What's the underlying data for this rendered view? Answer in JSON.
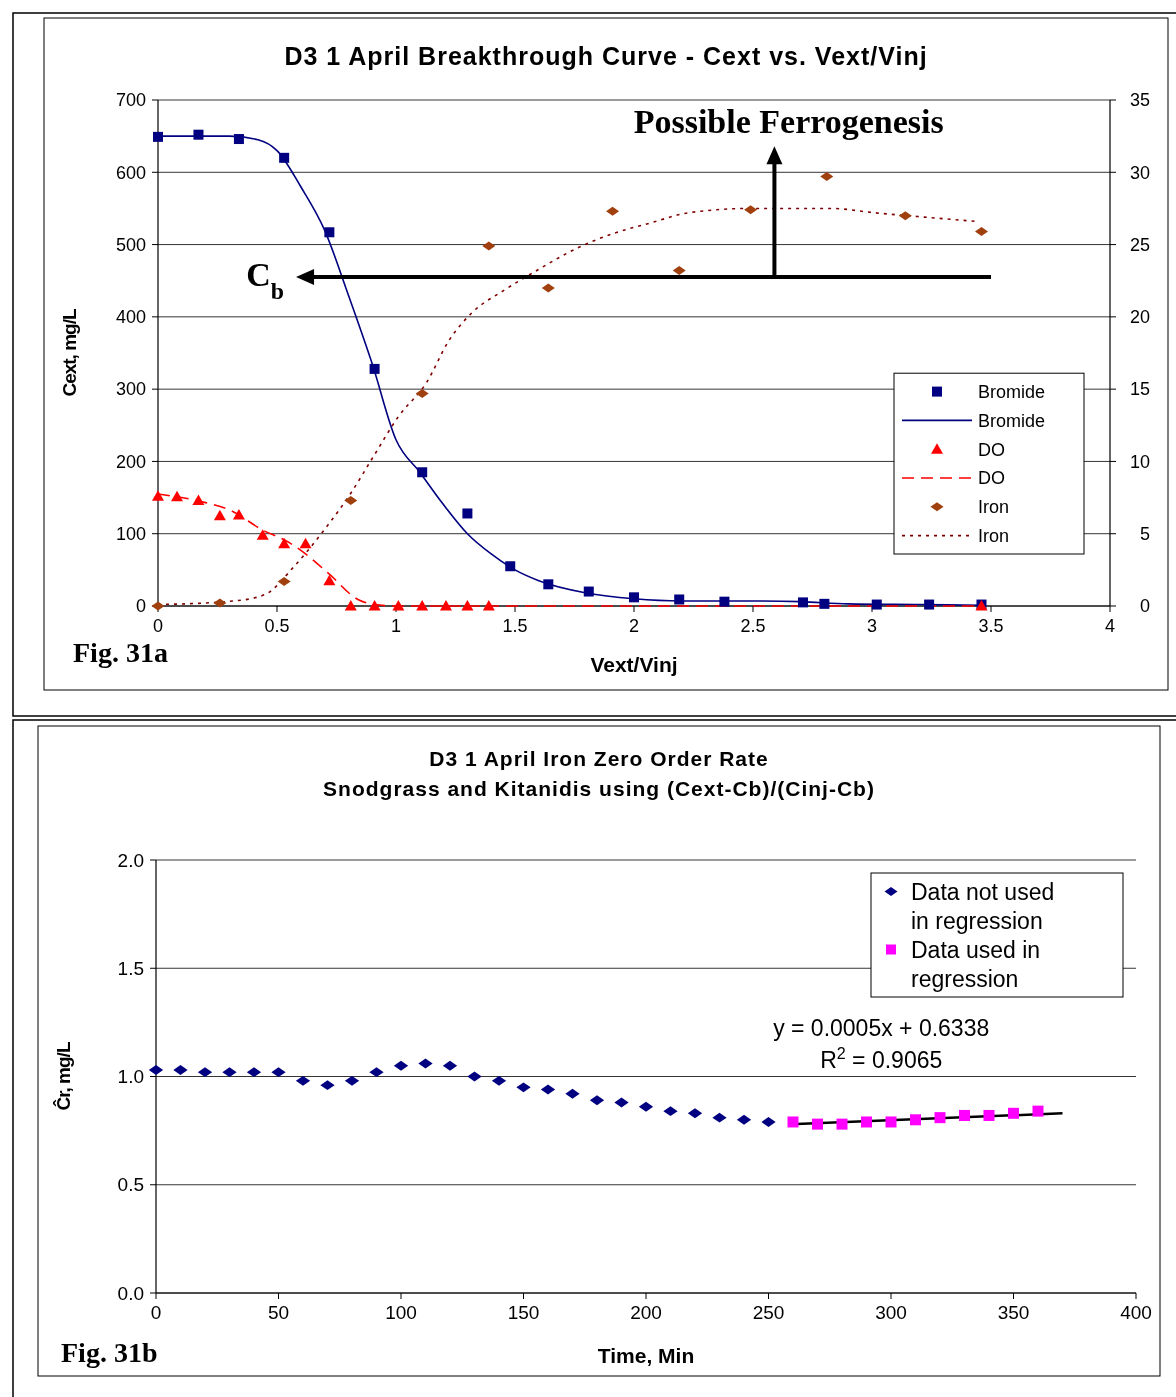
{
  "chart_data": [
    {
      "type": "scatter",
      "title": "D3 1 April Breakthrough Curve - Cext vs. Vext/Vinj",
      "xlabel": "Vext/Vinj",
      "ylabel": "Cext, mg/L",
      "annotations": [
        "Possible Ferrogenesis",
        "C$_{b}$",
        "Fig. 31a"
      ],
      "xlim": [
        0,
        4
      ],
      "xticks": [
        0,
        0.5,
        1,
        1.5,
        2,
        2.5,
        3,
        3.5,
        4
      ],
      "ylim": [
        0,
        700
      ],
      "yticks": [
        0,
        100,
        200,
        300,
        400,
        500,
        600,
        700
      ],
      "y2lim": [
        0,
        35
      ],
      "y2ticks": [
        0,
        5,
        10,
        15,
        20,
        25,
        30,
        35
      ],
      "grid": "y",
      "legend": "bottom right",
      "series": [
        {
          "name": "Bromide",
          "marker": "square",
          "color": "#000080",
          "x": [
            0,
            0.17,
            0.34,
            0.53,
            0.72,
            0.91,
            1.11,
            1.3,
            1.48,
            1.64,
            1.81,
            2.0,
            2.19,
            2.38,
            2.71,
            2.8,
            3.02,
            3.24,
            3.46
          ],
          "values": [
            649,
            652,
            646,
            620,
            517,
            328,
            185,
            128,
            55,
            30,
            20,
            12,
            9,
            6,
            5,
            3,
            2,
            2,
            2
          ]
        },
        {
          "name": "Bromide",
          "type": "line",
          "line_style": "solid",
          "color": "#000080",
          "x": [
            0,
            0.3,
            0.42,
            0.5,
            0.6,
            0.7,
            0.8,
            0.9,
            1.0,
            1.1,
            1.2,
            1.3,
            1.4,
            1.5,
            1.6,
            1.8,
            2.0,
            2.2,
            2.5,
            2.7,
            2.9,
            3.2,
            3.46
          ],
          "values": [
            650,
            650,
            645,
            630,
            580,
            520,
            430,
            335,
            230,
            185,
            140,
            100,
            72,
            50,
            35,
            18,
            10,
            7,
            7,
            6,
            3,
            2,
            1
          ]
        },
        {
          "name": "DO",
          "marker": "triangle",
          "color": "#ff0000",
          "x": [
            0,
            0.08,
            0.17,
            0.26,
            0.34,
            0.44,
            0.53,
            0.62,
            0.72,
            0.81,
            0.91,
            1.01,
            1.11,
            1.21,
            1.3,
            1.39,
            3.46
          ],
          "values": [
            152,
            151,
            146,
            125,
            126,
            98,
            86,
            86,
            35,
            0,
            0,
            0,
            0,
            0,
            0,
            0,
            0
          ]
        },
        {
          "name": "DO",
          "type": "line",
          "line_style": "dashed",
          "color": "#ff0000",
          "x": [
            0,
            0.2,
            0.3,
            0.44,
            0.55,
            0.62,
            0.72,
            0.84,
            0.91,
            1.0,
            3.46
          ],
          "values": [
            155,
            143,
            133,
            105,
            88,
            72,
            44,
            9,
            2,
            0,
            0
          ]
        },
        {
          "name": "Iron",
          "marker": "diamond",
          "axis": "y2",
          "color": "#a0400f",
          "x": [
            0,
            0.26,
            0.53,
            0.81,
            1.11,
            1.39,
            1.64,
            1.91,
            2.19,
            2.49,
            2.81,
            3.14,
            3.46
          ],
          "values": [
            0,
            0.2,
            1.7,
            7.3,
            14.7,
            24.9,
            22.0,
            27.3,
            23.2,
            27.4,
            29.7,
            27.0,
            25.9
          ]
        },
        {
          "name": "Iron",
          "type": "line",
          "line_style": "dotted",
          "axis": "y2",
          "color": "#800000",
          "x": [
            0,
            0.32,
            0.45,
            0.57,
            0.7,
            0.81,
            0.9,
            1.01,
            1.13,
            1.22,
            1.32,
            1.45,
            1.57,
            1.78,
            1.92,
            2.07,
            2.23,
            2.49,
            2.83,
            3.01,
            3.22,
            3.44
          ],
          "values": [
            0.1,
            0.35,
            0.8,
            2.7,
            5.3,
            7.8,
            10.2,
            13.1,
            15.5,
            18.3,
            20.3,
            21.8,
            23,
            24.9,
            25.8,
            26.5,
            27.2,
            27.5,
            27.5,
            27.2,
            26.9,
            26.6
          ]
        }
      ]
    },
    {
      "type": "scatter",
      "title": "D3 1 April Iron Zero Order Rate",
      "subtitle": "Snodgrass and Kitanidis using (Cext-Cb)/(Cinj-Cb)",
      "xlabel": "Time, Min",
      "ylabel": "Ĉr, mg/L",
      "annotations": [
        "y = 0.0005x + 0.6338",
        "R$^{2}$ = 0.9065",
        "Fig. 31b"
      ],
      "xlim": [
        0,
        400
      ],
      "xticks": [
        0,
        50,
        100,
        150,
        200,
        250,
        300,
        350,
        400
      ],
      "ylim": [
        0,
        2
      ],
      "yticks": [
        {
          "value": 0,
          "label": "0.0"
        },
        {
          "value": 0.5,
          "label": "0.5"
        },
        {
          "value": 1,
          "label": "1.0"
        },
        {
          "value": 1.5,
          "label": "1.5"
        },
        {
          "value": 2,
          "label": "2.0"
        }
      ],
      "grid": "y",
      "legend": "top right",
      "series": [
        {
          "name": "Data not used in regression",
          "marker": "diamond",
          "color": "#000080",
          "x": [
            0,
            10,
            20,
            30,
            40,
            50,
            60,
            70,
            80,
            90,
            100,
            110,
            120,
            130,
            140,
            150,
            160,
            170,
            180,
            190,
            200,
            210,
            220,
            230,
            240,
            250
          ],
          "values": [
            1.03,
            1.03,
            1.02,
            1.02,
            1.02,
            1.02,
            0.98,
            0.96,
            0.98,
            1.02,
            1.05,
            1.06,
            1.05,
            1.0,
            0.98,
            0.95,
            0.94,
            0.92,
            0.89,
            0.88,
            0.86,
            0.84,
            0.83,
            0.81,
            0.8,
            0.79
          ]
        },
        {
          "name": "Data used in regression",
          "marker": "square",
          "color": "#ff00ff",
          "x": [
            260,
            270,
            280,
            290,
            300,
            310,
            320,
            330,
            340,
            350,
            360
          ],
          "values": [
            0.79,
            0.78,
            0.78,
            0.79,
            0.79,
            0.8,
            0.81,
            0.82,
            0.82,
            0.83,
            0.84
          ]
        },
        {
          "type": "line",
          "line_style": "solid",
          "color": "#000000",
          "x": [
            259,
            370
          ],
          "values": [
            0.78,
            0.83
          ]
        }
      ]
    }
  ]
}
